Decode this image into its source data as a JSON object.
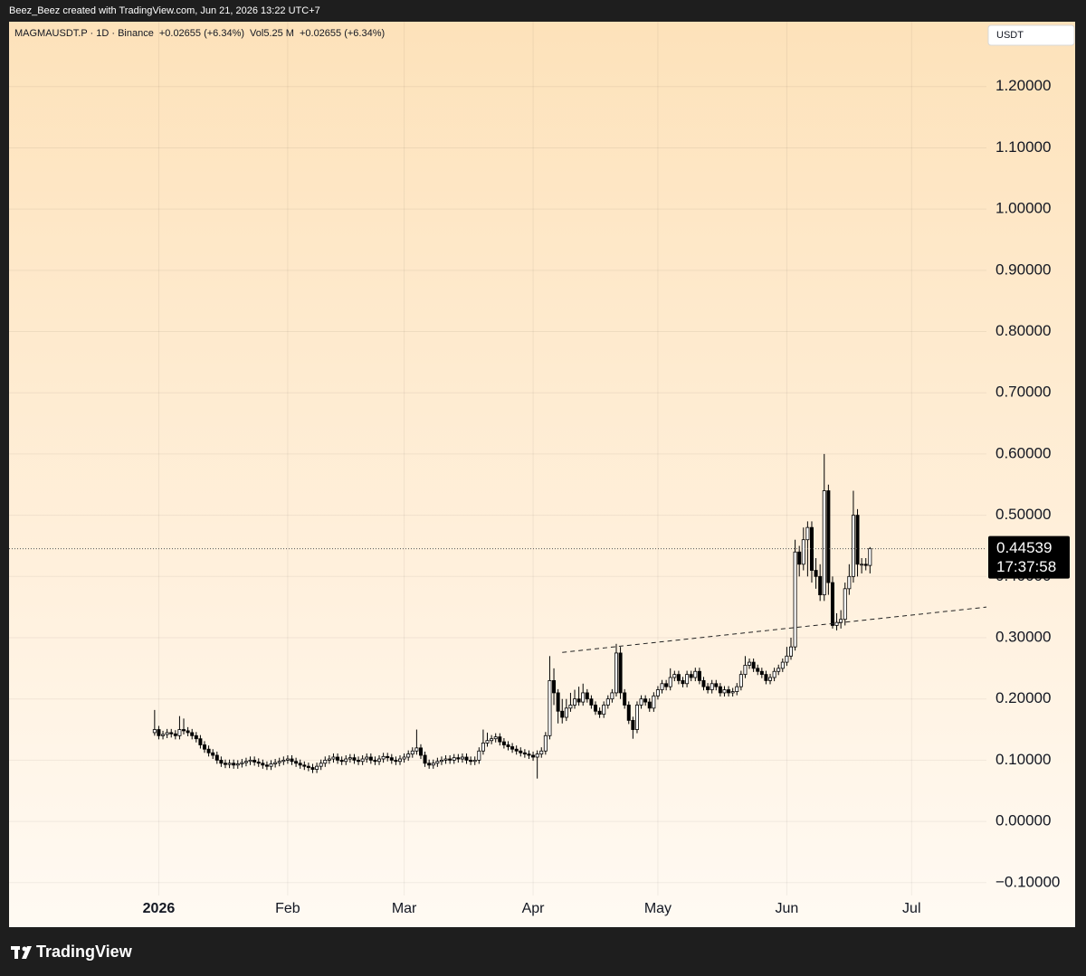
{
  "header": {
    "text": "Beez_Beez created with TradingView.com, Jun 21, 2026 13:22 UTC+7"
  },
  "footer": {
    "logo": "TradingView"
  },
  "chart_data": {
    "type": "candlestick",
    "title": "MAGMAUSDT.P · 1D · Binance",
    "change": "+0.02655 (+6.34%)",
    "volume_label": "Vol",
    "volume": "5.25 M",
    "volume_change": "+0.02655 (+6.34%)",
    "currency": "USDT",
    "last_price": 0.44539,
    "countdown": "17:37:58",
    "up_color": "#ffffff",
    "down_color": "#000000",
    "grid": true,
    "xlim": [
      "2025-11-26",
      "2026-07-19"
    ],
    "xticks": [
      {
        "value": "2026-01-01",
        "label": "2026"
      },
      {
        "value": "2026-02-01",
        "label": "Feb"
      },
      {
        "value": "2026-03-01",
        "label": "Mar"
      },
      {
        "value": "2026-04-01",
        "label": "Apr"
      },
      {
        "value": "2026-05-01",
        "label": "May"
      },
      {
        "value": "2026-06-01",
        "label": "Jun"
      },
      {
        "value": "2026-07-01",
        "label": "Jul"
      }
    ],
    "ylim": [
      -0.121,
      1.306
    ],
    "yticks": [
      {
        "value": -0.1,
        "label": "−0.10000"
      },
      {
        "value": 0,
        "label": "0.00000"
      },
      {
        "value": 0.1,
        "label": "0.10000"
      },
      {
        "value": 0.2,
        "label": "0.20000"
      },
      {
        "value": 0.3,
        "label": "0.30000"
      },
      {
        "value": 0.4,
        "label": "0.40000"
      },
      {
        "value": 0.5,
        "label": "0.50000"
      },
      {
        "value": 0.6,
        "label": "0.60000"
      },
      {
        "value": 0.7,
        "label": "0.70000"
      },
      {
        "value": 0.8,
        "label": "0.80000"
      },
      {
        "value": 0.9,
        "label": "0.90000"
      },
      {
        "value": 1.0,
        "label": "1.00000"
      },
      {
        "value": 1.1,
        "label": "1.10000"
      },
      {
        "value": 1.2,
        "label": "1.20000"
      }
    ],
    "trendline": {
      "x": [
        "2026-04-08",
        "2026-07-19"
      ],
      "y": [
        0.276,
        0.35
      ]
    },
    "start": "2025-12-31",
    "open": [
      0.145,
      0.15,
      0.14,
      0.142,
      0.145,
      0.143,
      0.14,
      0.15,
      0.148,
      0.145,
      0.14,
      0.135,
      0.125,
      0.118,
      0.112,
      0.108,
      0.1,
      0.095,
      0.093,
      0.095,
      0.092,
      0.094,
      0.096,
      0.098,
      0.1,
      0.097,
      0.095,
      0.092,
      0.09,
      0.094,
      0.096,
      0.098,
      0.1,
      0.102,
      0.098,
      0.095,
      0.092,
      0.09,
      0.088,
      0.085,
      0.09,
      0.095,
      0.1,
      0.102,
      0.105,
      0.1,
      0.098,
      0.102,
      0.104,
      0.1,
      0.098,
      0.102,
      0.105,
      0.1,
      0.098,
      0.102,
      0.106,
      0.104,
      0.1,
      0.098,
      0.102,
      0.105,
      0.11,
      0.115,
      0.12,
      0.108,
      0.095,
      0.092,
      0.095,
      0.098,
      0.1,
      0.102,
      0.1,
      0.104,
      0.102,
      0.105,
      0.1,
      0.098,
      0.1,
      0.115,
      0.128,
      0.132,
      0.135,
      0.138,
      0.13,
      0.125,
      0.122,
      0.118,
      0.115,
      0.112,
      0.11,
      0.108,
      0.105,
      0.11,
      0.115,
      0.14,
      0.23,
      0.21,
      0.18,
      0.17,
      0.185,
      0.19,
      0.2,
      0.195,
      0.21,
      0.2,
      0.19,
      0.18,
      0.175,
      0.19,
      0.2,
      0.21,
      0.275,
      0.21,
      0.19,
      0.165,
      0.15,
      0.19,
      0.2,
      0.195,
      0.185,
      0.205,
      0.215,
      0.225,
      0.22,
      0.235,
      0.24,
      0.23,
      0.225,
      0.24,
      0.235,
      0.245,
      0.23,
      0.22,
      0.215,
      0.225,
      0.22,
      0.21,
      0.215,
      0.21,
      0.212,
      0.22,
      0.24,
      0.255,
      0.26,
      0.25,
      0.245,
      0.24,
      0.23,
      0.235,
      0.245,
      0.25,
      0.26,
      0.27,
      0.285,
      0.44,
      0.42,
      0.46,
      0.48,
      0.41,
      0.4,
      0.37,
      0.54,
      0.39,
      0.32,
      0.325,
      0.33,
      0.38,
      0.4,
      0.5,
      0.42,
      0.42,
      0.418
    ],
    "high": [
      0.182,
      0.156,
      0.148,
      0.151,
      0.151,
      0.149,
      0.172,
      0.168,
      0.154,
      0.151,
      0.146,
      0.141,
      0.131,
      0.124,
      0.118,
      0.114,
      0.106,
      0.101,
      0.101,
      0.101,
      0.1,
      0.102,
      0.104,
      0.106,
      0.106,
      0.103,
      0.101,
      0.098,
      0.1,
      0.102,
      0.104,
      0.106,
      0.108,
      0.108,
      0.104,
      0.101,
      0.098,
      0.096,
      0.094,
      0.096,
      0.101,
      0.106,
      0.108,
      0.111,
      0.111,
      0.106,
      0.108,
      0.11,
      0.11,
      0.106,
      0.108,
      0.111,
      0.111,
      0.106,
      0.108,
      0.112,
      0.112,
      0.11,
      0.106,
      0.108,
      0.111,
      0.116,
      0.121,
      0.15,
      0.126,
      0.114,
      0.101,
      0.101,
      0.104,
      0.106,
      0.108,
      0.108,
      0.11,
      0.11,
      0.111,
      0.111,
      0.106,
      0.106,
      0.121,
      0.15,
      0.145,
      0.141,
      0.144,
      0.144,
      0.136,
      0.131,
      0.128,
      0.124,
      0.121,
      0.118,
      0.116,
      0.114,
      0.116,
      0.121,
      0.146,
      0.27,
      0.25,
      0.216,
      0.2,
      0.2,
      0.21,
      0.215,
      0.22,
      0.225,
      0.216,
      0.206,
      0.196,
      0.186,
      0.196,
      0.206,
      0.216,
      0.29,
      0.285,
      0.216,
      0.196,
      0.171,
      0.196,
      0.206,
      0.206,
      0.201,
      0.211,
      0.221,
      0.231,
      0.231,
      0.25,
      0.246,
      0.246,
      0.236,
      0.246,
      0.246,
      0.251,
      0.251,
      0.236,
      0.226,
      0.231,
      0.231,
      0.226,
      0.221,
      0.221,
      0.218,
      0.226,
      0.246,
      0.27,
      0.266,
      0.266,
      0.256,
      0.251,
      0.246,
      0.241,
      0.251,
      0.256,
      0.266,
      0.285,
      0.3,
      0.46,
      0.45,
      0.48,
      0.49,
      0.49,
      0.43,
      0.42,
      0.6,
      0.55,
      0.4,
      0.34,
      0.345,
      0.39,
      0.42,
      0.54,
      0.51,
      0.43,
      0.43,
      0.448
    ],
    "low": [
      0.14,
      0.134,
      0.134,
      0.136,
      0.137,
      0.134,
      0.134,
      0.142,
      0.139,
      0.134,
      0.129,
      0.119,
      0.112,
      0.106,
      0.102,
      0.094,
      0.089,
      0.087,
      0.087,
      0.086,
      0.086,
      0.088,
      0.09,
      0.092,
      0.091,
      0.089,
      0.086,
      0.084,
      0.084,
      0.088,
      0.09,
      0.092,
      0.094,
      0.092,
      0.089,
      0.086,
      0.084,
      0.082,
      0.079,
      0.079,
      0.084,
      0.089,
      0.094,
      0.096,
      0.094,
      0.092,
      0.092,
      0.096,
      0.094,
      0.092,
      0.092,
      0.096,
      0.094,
      0.092,
      0.092,
      0.096,
      0.098,
      0.094,
      0.092,
      0.092,
      0.096,
      0.099,
      0.104,
      0.109,
      0.102,
      0.089,
      0.086,
      0.086,
      0.089,
      0.092,
      0.094,
      0.094,
      0.094,
      0.096,
      0.096,
      0.094,
      0.092,
      0.092,
      0.094,
      0.109,
      0.122,
      0.126,
      0.129,
      0.124,
      0.119,
      0.116,
      0.112,
      0.109,
      0.106,
      0.104,
      0.102,
      0.099,
      0.07,
      0.104,
      0.109,
      0.134,
      0.19,
      0.16,
      0.16,
      0.164,
      0.179,
      0.184,
      0.189,
      0.189,
      0.194,
      0.184,
      0.174,
      0.169,
      0.169,
      0.184,
      0.194,
      0.204,
      0.2,
      0.184,
      0.159,
      0.135,
      0.144,
      0.184,
      0.189,
      0.179,
      0.179,
      0.199,
      0.209,
      0.214,
      0.214,
      0.229,
      0.224,
      0.219,
      0.219,
      0.229,
      0.229,
      0.224,
      0.214,
      0.209,
      0.209,
      0.214,
      0.204,
      0.204,
      0.204,
      0.204,
      0.206,
      0.214,
      0.234,
      0.249,
      0.244,
      0.239,
      0.234,
      0.224,
      0.224,
      0.229,
      0.239,
      0.244,
      0.254,
      0.264,
      0.279,
      0.4,
      0.41,
      0.4,
      0.39,
      0.38,
      0.36,
      0.36,
      0.37,
      0.315,
      0.312,
      0.315,
      0.32,
      0.37,
      0.39,
      0.4,
      0.405,
      0.41,
      0.405
    ],
    "close": [
      0.15,
      0.14,
      0.142,
      0.145,
      0.143,
      0.14,
      0.15,
      0.148,
      0.145,
      0.14,
      0.135,
      0.125,
      0.118,
      0.112,
      0.108,
      0.1,
      0.095,
      0.093,
      0.095,
      0.092,
      0.094,
      0.096,
      0.098,
      0.1,
      0.097,
      0.095,
      0.092,
      0.09,
      0.094,
      0.096,
      0.098,
      0.1,
      0.102,
      0.098,
      0.095,
      0.092,
      0.09,
      0.088,
      0.085,
      0.09,
      0.095,
      0.1,
      0.102,
      0.105,
      0.1,
      0.098,
      0.102,
      0.104,
      0.1,
      0.098,
      0.102,
      0.105,
      0.1,
      0.098,
      0.102,
      0.106,
      0.104,
      0.1,
      0.098,
      0.102,
      0.105,
      0.11,
      0.115,
      0.12,
      0.108,
      0.095,
      0.092,
      0.095,
      0.098,
      0.1,
      0.102,
      0.1,
      0.104,
      0.102,
      0.105,
      0.1,
      0.098,
      0.1,
      0.115,
      0.128,
      0.132,
      0.135,
      0.138,
      0.13,
      0.125,
      0.122,
      0.118,
      0.115,
      0.112,
      0.11,
      0.108,
      0.105,
      0.11,
      0.115,
      0.14,
      0.23,
      0.21,
      0.18,
      0.17,
      0.185,
      0.19,
      0.2,
      0.195,
      0.21,
      0.2,
      0.19,
      0.18,
      0.175,
      0.19,
      0.2,
      0.21,
      0.275,
      0.21,
      0.19,
      0.165,
      0.15,
      0.19,
      0.2,
      0.195,
      0.185,
      0.205,
      0.215,
      0.225,
      0.22,
      0.235,
      0.24,
      0.23,
      0.225,
      0.24,
      0.235,
      0.245,
      0.23,
      0.22,
      0.215,
      0.225,
      0.22,
      0.21,
      0.215,
      0.21,
      0.212,
      0.22,
      0.24,
      0.255,
      0.26,
      0.25,
      0.245,
      0.24,
      0.23,
      0.235,
      0.245,
      0.25,
      0.26,
      0.27,
      0.285,
      0.44,
      0.42,
      0.46,
      0.48,
      0.41,
      0.4,
      0.37,
      0.54,
      0.39,
      0.32,
      0.325,
      0.33,
      0.38,
      0.4,
      0.5,
      0.42,
      0.42,
      0.418,
      0.44539
    ]
  }
}
